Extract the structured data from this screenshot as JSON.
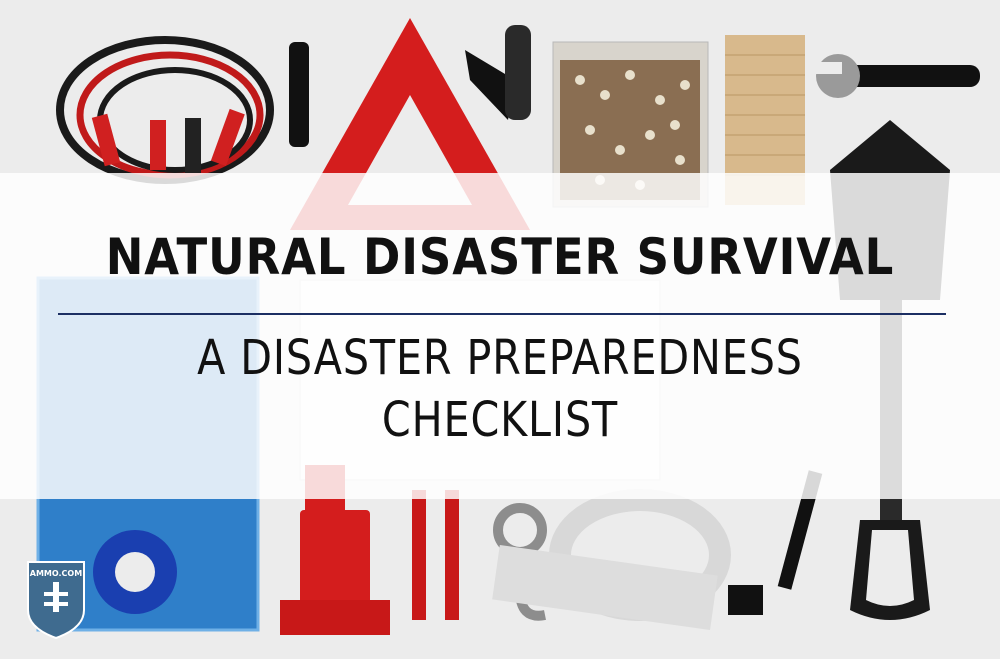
{
  "title": "NATURAL DISASTER SURVIVAL",
  "subtitle_line1": "A DISASTER PREPAREDNESS",
  "subtitle_line2": "CHECKLIST",
  "logo_text": "AMMO.COM",
  "background_items": [
    "jumper-cables",
    "flashlight",
    "warning-triangle",
    "pocket-knife",
    "trail-mix",
    "crackers",
    "wrench",
    "shovel",
    "first-aid-kit",
    "tarp",
    "zip-ties",
    "rope",
    "tape",
    "bottle-jack",
    "jack-handle",
    "tow-hook",
    "tow-strap",
    "lug-wrench"
  ],
  "colors": {
    "band": "#ffffff",
    "text": "#111111",
    "rule": "#1c2f63",
    "logo": "#3f6b8f"
  }
}
